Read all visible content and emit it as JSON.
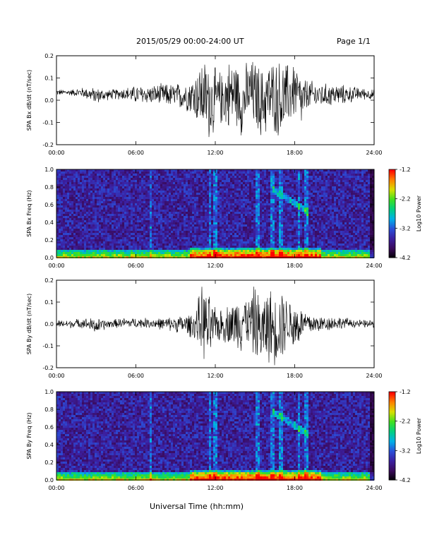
{
  "header": {
    "title": "2015/05/29  00:00-24:00 UT",
    "page": "Page 1/1"
  },
  "footer": {
    "xlabel": "Universal Time (hh:mm)"
  },
  "colors": {
    "waveform": "#000000",
    "axes": "#000000",
    "colormap": [
      "#000000",
      "#3a0a5a",
      "#3b1fa0",
      "#2a4fd8",
      "#00b0e8",
      "#00d080",
      "#40e020",
      "#d8e000",
      "#ff8000",
      "#ff0000"
    ]
  },
  "chart_data": [
    {
      "type": "line",
      "title": "",
      "ylabel": "SPA Bx dB/dt (nT/sec)",
      "xlabel": "",
      "x_ticks": [
        "00:00",
        "06:00",
        "12:00",
        "18:00",
        "24:00"
      ],
      "y_ticks": [
        "-0.2",
        "-0.1",
        "0.0",
        "0.1",
        "0.2"
      ],
      "xlim": [
        0,
        24
      ],
      "ylim": [
        -0.2,
        0.2
      ],
      "grid": false,
      "series": [
        {
          "x": [
            0,
            1,
            2,
            3,
            4,
            5,
            6,
            7,
            8,
            9,
            10,
            10.5,
            11,
            11.5,
            12,
            12.5,
            13,
            13.5,
            14,
            14.5,
            15,
            15.5,
            16,
            16.5,
            17,
            17.5,
            18,
            18.5,
            19,
            20,
            21,
            22,
            23,
            24
          ],
          "upper": [
            0.05,
            0.05,
            0.06,
            0.06,
            0.05,
            0.06,
            0.07,
            0.07,
            0.08,
            0.08,
            0.1,
            0.14,
            0.2,
            0.2,
            0.16,
            0.14,
            0.2,
            0.2,
            0.14,
            0.2,
            0.2,
            0.16,
            0.2,
            0.2,
            0.2,
            0.18,
            0.2,
            0.12,
            0.1,
            0.08,
            0.08,
            0.07,
            0.06,
            0.05
          ],
          "lower": [
            0.02,
            0.02,
            0.01,
            -0.02,
            0.0,
            0.0,
            -0.02,
            -0.02,
            -0.03,
            -0.04,
            -0.06,
            -0.1,
            -0.16,
            -0.2,
            -0.17,
            -0.12,
            -0.15,
            -0.12,
            -0.18,
            -0.12,
            -0.15,
            -0.2,
            -0.16,
            -0.17,
            -0.2,
            -0.14,
            -0.1,
            -0.14,
            -0.05,
            -0.04,
            -0.03,
            -0.02,
            0.0,
            0.0
          ]
        }
      ]
    },
    {
      "type": "heatmap",
      "title": "",
      "ylabel": "SPA Bx Freq (Hz)",
      "xlabel": "",
      "x_ticks": [
        "00:00",
        "06:00",
        "12:00",
        "18:00",
        "24:00"
      ],
      "y_ticks": [
        "0.0",
        "0.2",
        "0.4",
        "0.6",
        "0.8",
        "1.0"
      ],
      "xlim": [
        0,
        24
      ],
      "ylim": [
        0,
        1.0
      ],
      "colorbar": {
        "label": "Log10 Power",
        "ticks": [
          "-1.2",
          "-2.2",
          "-3.2",
          "-4.2"
        ],
        "range": [
          -4.2,
          -1.2
        ]
      },
      "bright_times_hr": [
        7.1,
        11.6,
        12.0,
        15.2,
        16.3,
        17.0,
        18.3,
        18.9
      ],
      "discrete_band": {
        "from_hr": 16.3,
        "to_hr": 19.0,
        "start_hz": 0.78,
        "end_hz": 0.52
      }
    },
    {
      "type": "line",
      "title": "",
      "ylabel": "SPA By dB/dt (nT/sec)",
      "xlabel": "",
      "x_ticks": [
        "00:00",
        "06:00",
        "12:00",
        "18:00",
        "24:00"
      ],
      "y_ticks": [
        "-0.2",
        "-0.1",
        "0.0",
        "0.1",
        "0.2"
      ],
      "xlim": [
        0,
        24
      ],
      "ylim": [
        -0.2,
        0.2
      ],
      "grid": false,
      "series": [
        {
          "x": [
            0,
            1,
            2,
            3,
            4,
            5,
            6,
            7,
            8,
            9,
            10,
            10.5,
            11,
            11.5,
            12,
            12.5,
            13,
            13.5,
            14,
            14.5,
            15,
            15.5,
            16,
            16.5,
            17,
            17.5,
            18,
            18.5,
            19,
            20,
            21,
            22,
            23,
            24
          ],
          "upper": [
            0.02,
            0.02,
            0.03,
            0.03,
            0.02,
            0.03,
            0.03,
            0.03,
            0.03,
            0.04,
            0.05,
            0.07,
            0.2,
            0.15,
            0.08,
            0.08,
            0.1,
            0.12,
            0.2,
            0.12,
            0.2,
            0.12,
            0.2,
            0.14,
            0.2,
            0.12,
            0.14,
            0.08,
            0.06,
            0.04,
            0.04,
            0.03,
            0.02,
            0.02
          ],
          "lower": [
            -0.02,
            -0.02,
            -0.02,
            -0.05,
            -0.02,
            -0.02,
            -0.02,
            -0.02,
            -0.03,
            -0.04,
            -0.06,
            -0.08,
            -0.17,
            -0.2,
            -0.1,
            -0.09,
            -0.1,
            -0.12,
            -0.15,
            -0.1,
            -0.18,
            -0.2,
            -0.2,
            -0.2,
            -0.19,
            -0.1,
            -0.16,
            -0.08,
            -0.06,
            -0.04,
            -0.03,
            -0.02,
            -0.02,
            -0.02
          ]
        }
      ]
    },
    {
      "type": "heatmap",
      "title": "",
      "ylabel": "SPA By Freq (Hz)",
      "xlabel": "",
      "x_ticks": [
        "00:00",
        "06:00",
        "12:00",
        "18:00",
        "24:00"
      ],
      "y_ticks": [
        "0.0",
        "0.2",
        "0.4",
        "0.6",
        "0.8",
        "1.0"
      ],
      "xlim": [
        0,
        24
      ],
      "ylim": [
        0,
        1.0
      ],
      "colorbar": {
        "label": "Log10 Power",
        "ticks": [
          "-1.2",
          "-2.2",
          "-3.2",
          "-4.2"
        ],
        "range": [
          -4.2,
          -1.2
        ]
      },
      "bright_times_hr": [
        7.1,
        11.6,
        12.0,
        15.2,
        16.3,
        17.0,
        18.3,
        18.9
      ],
      "discrete_band": {
        "from_hr": 16.3,
        "to_hr": 19.0,
        "start_hz": 0.78,
        "end_hz": 0.52
      }
    }
  ]
}
